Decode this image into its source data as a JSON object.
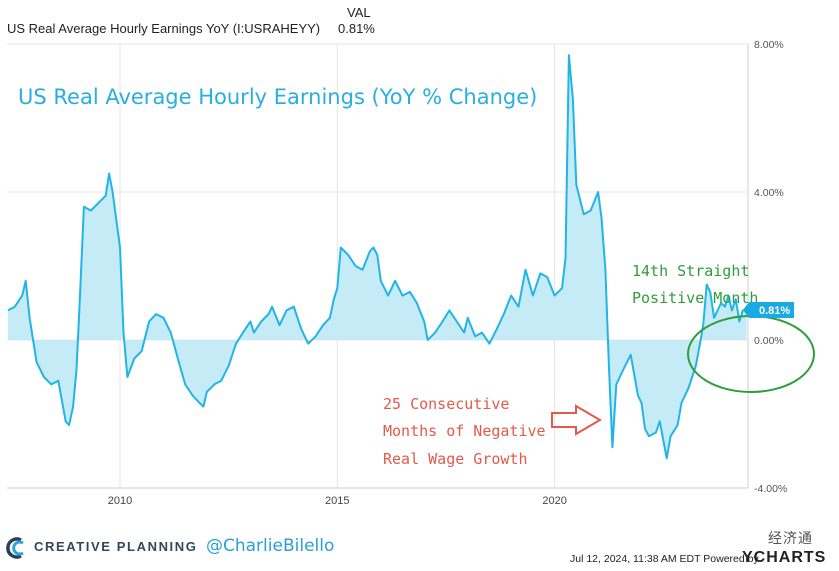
{
  "header": {
    "col_label": "VAL",
    "series_name": "US Real Average Hourly Earnings YoY (I:USRAHEYY)",
    "current_value": "0.81%"
  },
  "colors": {
    "line": "#22b4e6",
    "fill": "#c5ebf7",
    "grid": "#e6e6e6",
    "title": "#2aaee0",
    "positive_annotation": "#2e9e3c",
    "negative_annotation": "#e35a4a",
    "ellipse": "#2e9e3c",
    "arrow": "#e35a4a",
    "value_badge": "#1aa9e0"
  },
  "chart_data": {
    "type": "area",
    "title": "US Real Average Hourly Earnings (YoY % Change)",
    "xlabel": "",
    "ylabel": "",
    "ylim": [
      -4,
      8
    ],
    "xlim": [
      2007.4,
      2024.45
    ],
    "grid": true,
    "x_ticks": [
      "2010",
      "2015",
      "2020"
    ],
    "y_ticks": [
      "8.00%",
      "4.00%",
      "0.00%",
      "-4.00%"
    ],
    "last_value_label": "0.81%",
    "annotations": {
      "positive": [
        "14th Straight",
        "Positive Month"
      ],
      "negative": [
        "25 Consecutive",
        "Months of Negative",
        "Real Wage Growth"
      ]
    },
    "series": [
      {
        "points": [
          [
            2007.42,
            0.8
          ],
          [
            2007.58,
            0.9
          ],
          [
            2007.75,
            1.2
          ],
          [
            2007.83,
            1.6
          ],
          [
            2007.92,
            0.6
          ],
          [
            2008.08,
            -0.6
          ],
          [
            2008.25,
            -1.0
          ],
          [
            2008.42,
            -1.2
          ],
          [
            2008.58,
            -1.1
          ],
          [
            2008.75,
            -2.2
          ],
          [
            2008.83,
            -2.3
          ],
          [
            2008.92,
            -1.8
          ],
          [
            2009.0,
            -0.8
          ],
          [
            2009.08,
            1.2
          ],
          [
            2009.17,
            3.6
          ],
          [
            2009.33,
            3.5
          ],
          [
            2009.5,
            3.7
          ],
          [
            2009.67,
            3.9
          ],
          [
            2009.75,
            4.5
          ],
          [
            2009.83,
            4.0
          ],
          [
            2010.0,
            2.5
          ],
          [
            2010.08,
            0.2
          ],
          [
            2010.17,
            -1.0
          ],
          [
            2010.33,
            -0.5
          ],
          [
            2010.5,
            -0.3
          ],
          [
            2010.67,
            0.5
          ],
          [
            2010.83,
            0.7
          ],
          [
            2011.0,
            0.6
          ],
          [
            2011.17,
            0.2
          ],
          [
            2011.33,
            -0.5
          ],
          [
            2011.5,
            -1.2
          ],
          [
            2011.67,
            -1.5
          ],
          [
            2011.83,
            -1.7
          ],
          [
            2011.92,
            -1.8
          ],
          [
            2012.0,
            -1.4
          ],
          [
            2012.17,
            -1.2
          ],
          [
            2012.33,
            -1.1
          ],
          [
            2012.5,
            -0.7
          ],
          [
            2012.67,
            -0.1
          ],
          [
            2012.83,
            0.2
          ],
          [
            2013.0,
            0.5
          ],
          [
            2013.08,
            0.2
          ],
          [
            2013.25,
            0.5
          ],
          [
            2013.42,
            0.7
          ],
          [
            2013.5,
            0.9
          ],
          [
            2013.67,
            0.4
          ],
          [
            2013.83,
            0.8
          ],
          [
            2014.0,
            0.9
          ],
          [
            2014.17,
            0.3
          ],
          [
            2014.33,
            -0.1
          ],
          [
            2014.5,
            0.1
          ],
          [
            2014.67,
            0.4
          ],
          [
            2014.83,
            0.6
          ],
          [
            2014.92,
            1.1
          ],
          [
            2015.0,
            1.4
          ],
          [
            2015.08,
            2.5
          ],
          [
            2015.25,
            2.3
          ],
          [
            2015.42,
            2.0
          ],
          [
            2015.58,
            1.9
          ],
          [
            2015.75,
            2.4
          ],
          [
            2015.83,
            2.5
          ],
          [
            2015.92,
            2.3
          ],
          [
            2016.0,
            1.6
          ],
          [
            2016.17,
            1.2
          ],
          [
            2016.33,
            1.6
          ],
          [
            2016.5,
            1.2
          ],
          [
            2016.67,
            1.3
          ],
          [
            2016.83,
            1.0
          ],
          [
            2017.0,
            0.5
          ],
          [
            2017.08,
            0.0
          ],
          [
            2017.25,
            0.2
          ],
          [
            2017.42,
            0.5
          ],
          [
            2017.58,
            0.8
          ],
          [
            2017.75,
            0.5
          ],
          [
            2017.92,
            0.2
          ],
          [
            2018.0,
            0.6
          ],
          [
            2018.17,
            0.1
          ],
          [
            2018.33,
            0.2
          ],
          [
            2018.5,
            -0.1
          ],
          [
            2018.67,
            0.3
          ],
          [
            2018.83,
            0.7
          ],
          [
            2019.0,
            1.2
          ],
          [
            2019.17,
            0.9
          ],
          [
            2019.33,
            1.9
          ],
          [
            2019.5,
            1.2
          ],
          [
            2019.67,
            1.8
          ],
          [
            2019.83,
            1.7
          ],
          [
            2020.0,
            1.2
          ],
          [
            2020.17,
            1.4
          ],
          [
            2020.25,
            2.2
          ],
          [
            2020.33,
            7.7
          ],
          [
            2020.42,
            6.5
          ],
          [
            2020.5,
            4.2
          ],
          [
            2020.67,
            3.4
          ],
          [
            2020.83,
            3.5
          ],
          [
            2021.0,
            4.0
          ],
          [
            2021.08,
            3.3
          ],
          [
            2021.17,
            1.9
          ],
          [
            2021.25,
            -0.7
          ],
          [
            2021.33,
            -2.9
          ],
          [
            2021.42,
            -1.2
          ],
          [
            2021.58,
            -0.8
          ],
          [
            2021.75,
            -0.4
          ],
          [
            2021.92,
            -1.5
          ],
          [
            2022.0,
            -1.7
          ],
          [
            2022.08,
            -2.4
          ],
          [
            2022.17,
            -2.6
          ],
          [
            2022.33,
            -2.5
          ],
          [
            2022.42,
            -2.2
          ],
          [
            2022.58,
            -3.2
          ],
          [
            2022.67,
            -2.6
          ],
          [
            2022.83,
            -2.3
          ],
          [
            2022.92,
            -1.7
          ],
          [
            2023.08,
            -1.3
          ],
          [
            2023.25,
            -0.7
          ],
          [
            2023.33,
            -0.2
          ],
          [
            2023.42,
            0.4
          ],
          [
            2023.5,
            1.5
          ],
          [
            2023.58,
            1.3
          ],
          [
            2023.67,
            0.6
          ],
          [
            2023.83,
            1.0
          ],
          [
            2023.92,
            0.9
          ],
          [
            2024.0,
            1.2
          ],
          [
            2024.08,
            0.8
          ],
          [
            2024.17,
            1.1
          ],
          [
            2024.25,
            0.5
          ],
          [
            2024.33,
            0.8
          ],
          [
            2024.42,
            0.81
          ]
        ]
      }
    ]
  },
  "footer": {
    "brand": "CREATIVE PLANNING",
    "handle": "@CharlieBilello",
    "timestamp": "Jul 12, 2024, 11:38 AM EDT Powered by",
    "ycharts_logo": "YCHARTS",
    "watermark": "经济通"
  }
}
